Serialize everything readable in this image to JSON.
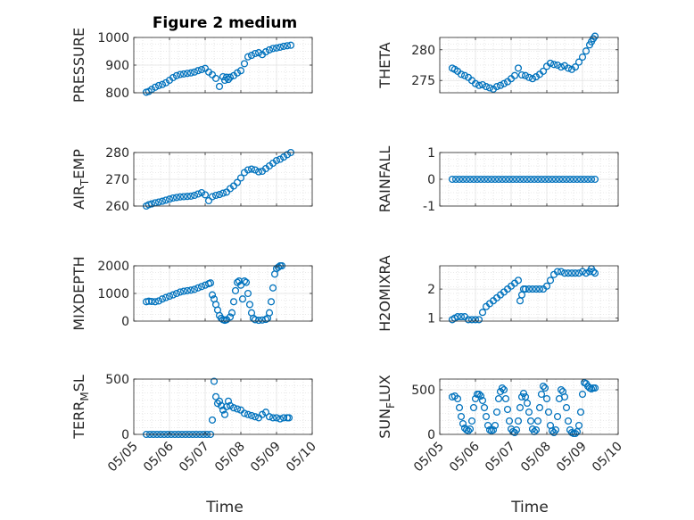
{
  "figure": {
    "title": "Figure 2 medium",
    "xlabel": "Time",
    "marker_color": "#0072BD",
    "date_ticks": [
      "05/05",
      "05/06",
      "05/07",
      "05/08",
      "05/09",
      "05/10"
    ]
  },
  "chart_data": [
    {
      "type": "scatter",
      "ylabel": "PRESSURE",
      "xlim": [
        "05/05",
        "05/10"
      ],
      "ylim": [
        800,
        1000
      ],
      "yticks": [
        800,
        900,
        1000
      ],
      "x_days": [
        0.35,
        0.42,
        0.5,
        0.6,
        0.7,
        0.8,
        0.9,
        1.0,
        1.1,
        1.2,
        1.3,
        1.4,
        1.5,
        1.6,
        1.7,
        1.8,
        1.9,
        2.0,
        2.1,
        2.2,
        2.3,
        2.4,
        2.5,
        2.55,
        2.6,
        2.65,
        2.7,
        2.8,
        2.9,
        3.0,
        3.1,
        3.2,
        3.3,
        3.4,
        3.5,
        3.6,
        3.7,
        3.8,
        3.9,
        4.0,
        4.1,
        4.2,
        4.3,
        4.4
      ],
      "y": [
        802,
        805,
        812,
        820,
        826,
        830,
        836,
        845,
        855,
        862,
        866,
        868,
        870,
        872,
        875,
        880,
        884,
        888,
        875,
        865,
        852,
        823,
        858,
        845,
        856,
        848,
        856,
        862,
        872,
        880,
        905,
        930,
        935,
        942,
        945,
        938,
        948,
        955,
        960,
        962,
        965,
        968,
        970,
        972
      ]
    },
    {
      "type": "scatter",
      "ylabel": "THETA",
      "xlim": [
        "05/05",
        "05/10"
      ],
      "ylim": [
        273,
        282
      ],
      "yticks": [
        275,
        280
      ],
      "x_days": [
        0.35,
        0.42,
        0.5,
        0.6,
        0.7,
        0.8,
        0.9,
        1.0,
        1.1,
        1.2,
        1.3,
        1.4,
        1.5,
        1.6,
        1.7,
        1.8,
        1.9,
        2.0,
        2.1,
        2.2,
        2.3,
        2.4,
        2.5,
        2.6,
        2.7,
        2.8,
        2.9,
        3.0,
        3.1,
        3.2,
        3.3,
        3.4,
        3.5,
        3.6,
        3.7,
        3.8,
        3.9,
        4.0,
        4.1,
        4.2,
        4.25,
        4.3,
        4.35
      ],
      "y": [
        277.0,
        276.8,
        276.5,
        276.0,
        275.8,
        275.5,
        275.0,
        274.5,
        274.2,
        274.3,
        274.0,
        273.8,
        273.6,
        274.0,
        274.2,
        274.5,
        274.8,
        275.3,
        275.8,
        277.0,
        275.9,
        275.8,
        275.5,
        275.3,
        275.6,
        276.0,
        276.5,
        277.3,
        277.8,
        277.6,
        277.5,
        277.2,
        277.4,
        277.0,
        276.8,
        277.2,
        278.0,
        278.8,
        279.8,
        280.8,
        281.3,
        281.8,
        282.2
      ]
    },
    {
      "type": "scatter",
      "ylabel": "AIR_TEMP",
      "xlim": [
        "05/05",
        "05/10"
      ],
      "ylim": [
        260,
        280
      ],
      "yticks": [
        260,
        270,
        280
      ],
      "x_days": [
        0.35,
        0.42,
        0.5,
        0.6,
        0.7,
        0.8,
        0.9,
        1.0,
        1.1,
        1.2,
        1.3,
        1.4,
        1.5,
        1.6,
        1.7,
        1.8,
        1.9,
        2.0,
        2.1,
        2.2,
        2.3,
        2.4,
        2.5,
        2.6,
        2.7,
        2.8,
        2.9,
        3.0,
        3.1,
        3.2,
        3.3,
        3.4,
        3.5,
        3.6,
        3.7,
        3.8,
        3.9,
        4.0,
        4.1,
        4.2,
        4.3,
        4.4
      ],
      "y": [
        260,
        260.5,
        260.8,
        261.2,
        261.5,
        261.8,
        262.2,
        262.6,
        263,
        263.2,
        263.4,
        263.5,
        263.6,
        263.7,
        264,
        264.5,
        265,
        264.2,
        262,
        263.5,
        264,
        264.3,
        264.8,
        265.2,
        266.5,
        267.5,
        268.8,
        270.5,
        272.5,
        273.5,
        273.8,
        273.5,
        272.8,
        273,
        274,
        275,
        276,
        277,
        277.5,
        278.3,
        279.2,
        280
      ]
    },
    {
      "type": "scatter",
      "ylabel": "RAINFALL",
      "xlim": [
        "05/05",
        "05/10"
      ],
      "ylim": [
        -1,
        1
      ],
      "yticks": [
        -1,
        0,
        1
      ],
      "x_days": [
        0.35,
        0.45,
        0.55,
        0.65,
        0.75,
        0.85,
        0.95,
        1.05,
        1.15,
        1.25,
        1.35,
        1.45,
        1.55,
        1.65,
        1.75,
        1.85,
        1.95,
        2.05,
        2.15,
        2.25,
        2.35,
        2.45,
        2.55,
        2.65,
        2.75,
        2.85,
        2.95,
        3.05,
        3.15,
        3.25,
        3.35,
        3.45,
        3.55,
        3.65,
        3.75,
        3.85,
        3.95,
        4.05,
        4.15,
        4.25,
        4.35
      ],
      "y": [
        0,
        0,
        0,
        0,
        0,
        0,
        0,
        0,
        0,
        0,
        0,
        0,
        0,
        0,
        0,
        0,
        0,
        0,
        0,
        0,
        0,
        0,
        0,
        0,
        0,
        0,
        0,
        0,
        0,
        0,
        0,
        0,
        0,
        0,
        0,
        0,
        0,
        0,
        0,
        0,
        0
      ]
    },
    {
      "type": "scatter",
      "ylabel": "MIXDEPTH",
      "xlim": [
        "05/05",
        "05/10"
      ],
      "ylim": [
        0,
        2000
      ],
      "yticks": [
        0,
        1000,
        2000
      ],
      "x_days": [
        0.35,
        0.42,
        0.5,
        0.6,
        0.7,
        0.8,
        0.9,
        1.0,
        1.1,
        1.2,
        1.3,
        1.4,
        1.5,
        1.6,
        1.7,
        1.8,
        1.9,
        2.0,
        2.1,
        2.15,
        2.2,
        2.25,
        2.3,
        2.35,
        2.4,
        2.45,
        2.5,
        2.55,
        2.6,
        2.7,
        2.75,
        2.8,
        2.85,
        2.9,
        2.95,
        3.0,
        3.05,
        3.1,
        3.15,
        3.2,
        3.25,
        3.3,
        3.35,
        3.4,
        3.5,
        3.6,
        3.7,
        3.75,
        3.8,
        3.85,
        3.9,
        3.95,
        4.0,
        4.05,
        4.1,
        4.15
      ],
      "y": [
        700,
        720,
        710,
        700,
        730,
        800,
        850,
        900,
        950,
        1000,
        1050,
        1080,
        1100,
        1120,
        1150,
        1200,
        1250,
        1300,
        1350,
        1380,
        950,
        800,
        600,
        400,
        200,
        100,
        50,
        30,
        50,
        150,
        300,
        700,
        1100,
        1400,
        1450,
        1300,
        800,
        1450,
        1400,
        1000,
        600,
        300,
        100,
        50,
        30,
        40,
        60,
        100,
        300,
        700,
        1200,
        1700,
        1900,
        1950,
        2000,
        2000
      ]
    },
    {
      "type": "scatter",
      "ylabel": "H2OMIXRA",
      "xlim": [
        "05/05",
        "05/10"
      ],
      "ylim": [
        0.9,
        2.8
      ],
      "yticks": [
        1,
        2
      ],
      "x_days": [
        0.35,
        0.42,
        0.5,
        0.6,
        0.7,
        0.8,
        0.9,
        1.0,
        1.1,
        1.2,
        1.3,
        1.4,
        1.5,
        1.6,
        1.7,
        1.8,
        1.9,
        2.0,
        2.1,
        2.2,
        2.25,
        2.3,
        2.35,
        2.4,
        2.5,
        2.6,
        2.7,
        2.8,
        2.9,
        3.0,
        3.1,
        3.2,
        3.3,
        3.4,
        3.5,
        3.6,
        3.7,
        3.8,
        3.9,
        4.0,
        4.1,
        4.2,
        4.25,
        4.3,
        4.35
      ],
      "y": [
        0.95,
        1.0,
        1.05,
        1.05,
        1.05,
        0.95,
        0.95,
        0.95,
        0.95,
        1.2,
        1.4,
        1.5,
        1.6,
        1.7,
        1.8,
        1.9,
        2.0,
        2.1,
        2.2,
        2.3,
        1.6,
        1.8,
        2.0,
        2.0,
        2.0,
        2.0,
        2.0,
        2.0,
        2.0,
        2.1,
        2.3,
        2.5,
        2.6,
        2.6,
        2.55,
        2.55,
        2.55,
        2.55,
        2.55,
        2.6,
        2.55,
        2.6,
        2.7,
        2.6,
        2.55
      ]
    },
    {
      "type": "scatter",
      "ylabel": "TERR_MSL",
      "xlim": [
        "05/05",
        "05/10"
      ],
      "ylim": [
        0,
        500
      ],
      "yticks": [
        0,
        500
      ],
      "x_days": [
        0.35,
        0.45,
        0.55,
        0.65,
        0.75,
        0.85,
        0.95,
        1.05,
        1.15,
        1.25,
        1.35,
        1.45,
        1.55,
        1.65,
        1.75,
        1.85,
        1.95,
        2.05,
        2.15,
        2.2,
        2.25,
        2.3,
        2.35,
        2.4,
        2.45,
        2.5,
        2.55,
        2.6,
        2.65,
        2.7,
        2.8,
        2.9,
        3.0,
        3.1,
        3.2,
        3.3,
        3.4,
        3.5,
        3.6,
        3.7,
        3.8,
        3.9,
        4.0,
        4.1,
        4.2,
        4.3,
        4.35
      ],
      "y": [
        0,
        0,
        0,
        0,
        0,
        0,
        0,
        0,
        0,
        0,
        0,
        0,
        0,
        0,
        0,
        0,
        0,
        0,
        0,
        130,
        480,
        340,
        280,
        300,
        260,
        220,
        180,
        250,
        300,
        260,
        240,
        230,
        220,
        190,
        180,
        170,
        160,
        150,
        180,
        200,
        160,
        150,
        150,
        140,
        150,
        150,
        150
      ]
    },
    {
      "type": "scatter",
      "ylabel": "SUN_FLUX",
      "xlim": [
        "05/05",
        "05/10"
      ],
      "ylim": [
        0,
        620
      ],
      "yticks": [
        0,
        500
      ],
      "x_days": [
        0.35,
        0.42,
        0.5,
        0.55,
        0.6,
        0.65,
        0.7,
        0.75,
        0.8,
        0.85,
        0.9,
        0.95,
        1.0,
        1.05,
        1.1,
        1.15,
        1.2,
        1.25,
        1.3,
        1.35,
        1.4,
        1.45,
        1.5,
        1.55,
        1.6,
        1.65,
        1.7,
        1.75,
        1.8,
        1.85,
        1.9,
        1.95,
        2.0,
        2.05,
        2.1,
        2.15,
        2.2,
        2.25,
        2.3,
        2.35,
        2.4,
        2.45,
        2.5,
        2.55,
        2.6,
        2.65,
        2.7,
        2.75,
        2.8,
        2.85,
        2.9,
        2.95,
        3.0,
        3.05,
        3.1,
        3.15,
        3.2,
        3.25,
        3.3,
        3.35,
        3.4,
        3.45,
        3.5,
        3.55,
        3.6,
        3.65,
        3.7,
        3.75,
        3.8,
        3.85,
        3.9,
        3.95,
        4.0,
        4.05,
        4.1,
        4.15,
        4.2,
        4.25,
        4.3,
        4.35
      ],
      "y": [
        420,
        430,
        400,
        300,
        200,
        120,
        70,
        50,
        40,
        60,
        150,
        300,
        400,
        450,
        450,
        430,
        380,
        300,
        200,
        100,
        50,
        40,
        50,
        100,
        250,
        400,
        480,
        520,
        500,
        400,
        280,
        150,
        60,
        30,
        20,
        50,
        150,
        300,
        420,
        460,
        420,
        350,
        250,
        150,
        60,
        30,
        50,
        150,
        300,
        450,
        540,
        520,
        400,
        250,
        100,
        40,
        20,
        50,
        200,
        400,
        500,
        480,
        420,
        300,
        150,
        50,
        20,
        10,
        10,
        30,
        100,
        250,
        450,
        580,
        570,
        540,
        520,
        510,
        520,
        520
      ]
    }
  ]
}
